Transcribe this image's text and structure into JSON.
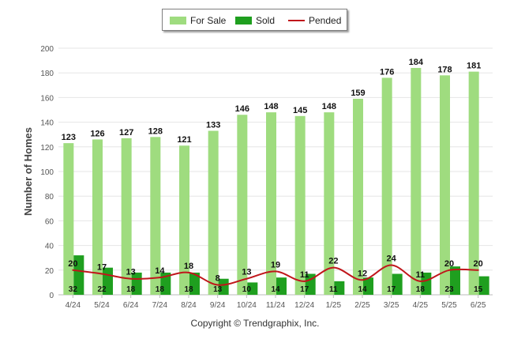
{
  "colors": {
    "for_sale": "#9fdc7f",
    "sold": "#1f9f1f",
    "pended": "#c0161b",
    "grid": "#e6e6e6",
    "axis_text": "#555555"
  },
  "legend": {
    "for_sale": "For Sale",
    "sold": "Sold",
    "pended": "Pended"
  },
  "footer": {
    "copyright": "Copyright © Trendgraphix, Inc."
  },
  "chart_data": {
    "type": "bar",
    "ylabel": "Number of Homes",
    "xlabel": "",
    "ylim": [
      0,
      200
    ],
    "yticks": [
      0,
      20,
      40,
      60,
      80,
      100,
      120,
      140,
      160,
      180,
      200
    ],
    "grid": true,
    "legend_position": "top-center",
    "categories": [
      "4/24",
      "5/24",
      "6/24",
      "7/24",
      "8/24",
      "9/24",
      "10/24",
      "11/24",
      "12/24",
      "1/25",
      "2/25",
      "3/25",
      "4/25",
      "5/25",
      "6/25"
    ],
    "series": [
      {
        "name": "For Sale",
        "kind": "bar",
        "values": [
          123,
          126,
          127,
          128,
          121,
          133,
          146,
          148,
          145,
          148,
          159,
          176,
          184,
          178,
          181
        ]
      },
      {
        "name": "Sold",
        "kind": "bar",
        "values": [
          32,
          22,
          18,
          18,
          18,
          13,
          10,
          14,
          17,
          11,
          14,
          17,
          18,
          23,
          15
        ]
      },
      {
        "name": "Pended",
        "kind": "line",
        "values": [
          20,
          17,
          13,
          14,
          18,
          8,
          13,
          19,
          11,
          22,
          12,
          24,
          11,
          20,
          20
        ]
      }
    ]
  }
}
